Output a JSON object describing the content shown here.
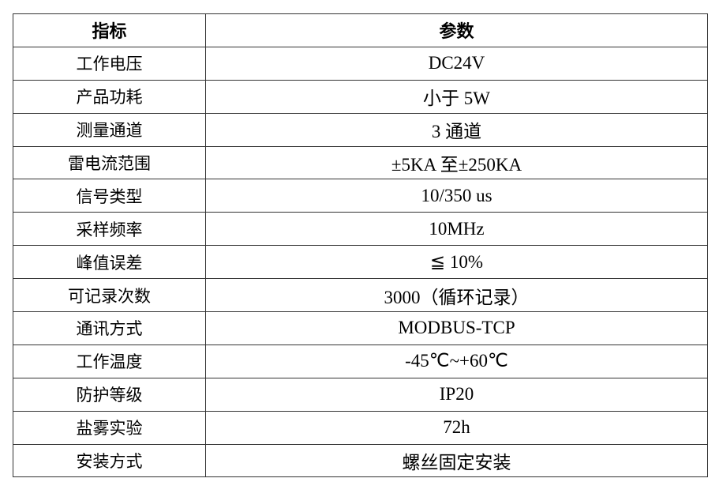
{
  "table": {
    "headers": [
      "指标",
      "参数"
    ],
    "rows": [
      [
        "工作电压",
        "DC24V"
      ],
      [
        "产品功耗",
        "小于 5W"
      ],
      [
        "测量通道",
        "3 通道"
      ],
      [
        "雷电流范围",
        "±5KA 至±250KA"
      ],
      [
        "信号类型",
        "10/350 us"
      ],
      [
        "采样频率",
        "10MHz"
      ],
      [
        "峰值误差",
        "≦  10%"
      ],
      [
        "可记录次数",
        "3000（循环记录）"
      ],
      [
        "通讯方式",
        "MODBUS-TCP"
      ],
      [
        "工作温度",
        "-45℃~+60℃"
      ],
      [
        "防护等级",
        "IP20"
      ],
      [
        "盐雾实验",
        "72h"
      ],
      [
        "安装方式",
        "螺丝固定安装"
      ]
    ]
  }
}
